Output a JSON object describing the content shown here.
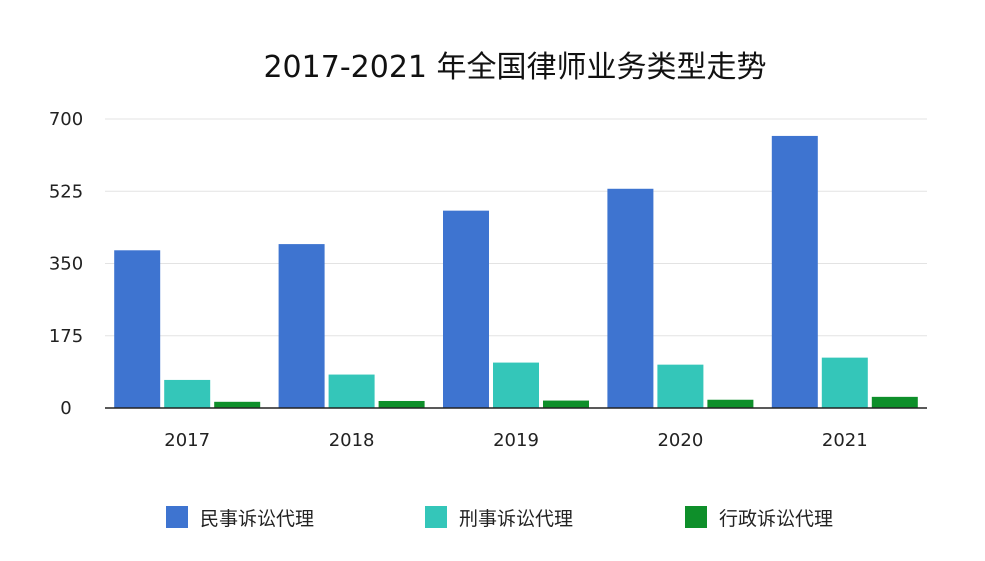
{
  "chart_data": {
    "type": "bar",
    "title": "2017-2021 年全国律师业务类型走势",
    "xlabel": "",
    "ylabel": "",
    "categories": [
      "2017",
      "2018",
      "2019",
      "2020",
      "2021"
    ],
    "ylim": [
      0,
      700
    ],
    "yticks": [
      "0",
      "175",
      "350",
      "525",
      "700"
    ],
    "grid": true,
    "legend_position": "bottom",
    "series": [
      {
        "name": "民事诉讼代理",
        "color": "#3E74D0",
        "values": [
          382,
          397,
          478,
          531,
          659
        ]
      },
      {
        "name": "刑事诉讼代理",
        "color": "#34C6B9",
        "values": [
          68,
          81,
          110,
          105,
          122
        ]
      },
      {
        "name": "行政诉讼代理",
        "color": "#0E8F2A",
        "values": [
          15,
          17,
          18,
          20,
          27
        ]
      }
    ]
  }
}
